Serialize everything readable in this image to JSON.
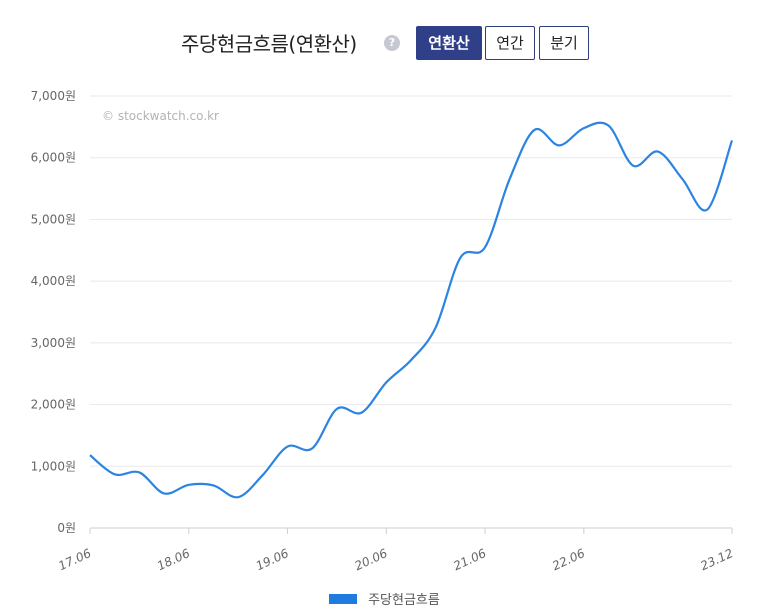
{
  "header": {
    "title": "주당현금흐름(연환산)",
    "help_icon": "?",
    "tabs": [
      {
        "label": "연환산",
        "active": true
      },
      {
        "label": "연간",
        "active": false
      },
      {
        "label": "분기",
        "active": false
      }
    ]
  },
  "watermark": "© stockwatch.co.kr",
  "colors": {
    "line": "#2b84e2",
    "accent": "#2f4089",
    "legend": "#1f7be0"
  },
  "chart_data": {
    "type": "line",
    "title": "",
    "xlabel": "",
    "ylabel": "",
    "ylim": [
      0,
      7000
    ],
    "yticks": [
      0,
      1000,
      2000,
      3000,
      4000,
      5000,
      6000,
      7000
    ],
    "ytick_labels": [
      "0원",
      "1,000원",
      "2,000원",
      "3,000원",
      "4,000원",
      "5,000원",
      "6,000원",
      "7,000원"
    ],
    "xtick_labels": [
      "17.06",
      "18.06",
      "19.06",
      "20.06",
      "21.06",
      "22.06",
      "23.12"
    ],
    "grid": true,
    "legend_position": "bottom",
    "x": [
      "17.06",
      "17.09",
      "17.12",
      "18.03",
      "18.06",
      "18.09",
      "18.12",
      "19.03",
      "19.06",
      "19.09",
      "19.12",
      "20.03",
      "20.06",
      "20.09",
      "20.12",
      "21.03",
      "21.06",
      "21.09",
      "21.12",
      "22.03",
      "22.06",
      "22.09",
      "22.12",
      "23.03",
      "23.06",
      "23.09",
      "23.12"
    ],
    "series": [
      {
        "name": "주당현금흐름",
        "values": [
          1180,
          870,
          900,
          560,
          700,
          690,
          500,
          860,
          1320,
          1290,
          1930,
          1870,
          2360,
          2720,
          3250,
          4380,
          4550,
          5660,
          6450,
          6200,
          6480,
          6520,
          5870,
          6100,
          5650,
          5160,
          6280
        ]
      }
    ]
  }
}
